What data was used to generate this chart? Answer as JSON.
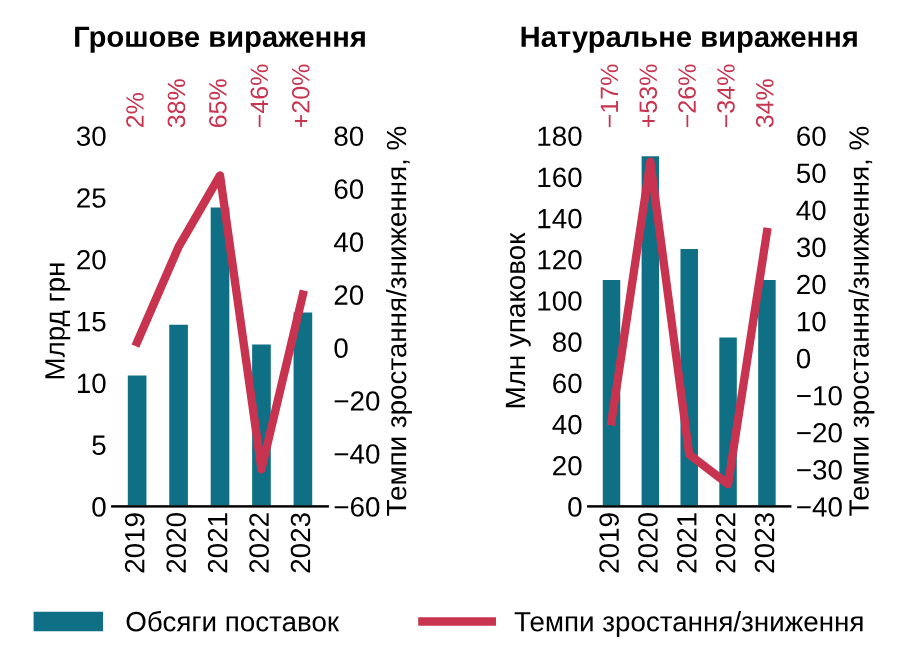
{
  "chart_data": [
    {
      "type": "bar",
      "title": "Грошове вираження",
      "ylabel": "Млрд грн",
      "y2label": "Темпи зростання/зниження, %",
      "categories": [
        "2019",
        "2020",
        "2021",
        "2022",
        "2023"
      ],
      "ylim": [
        0,
        30
      ],
      "yticks": [
        0,
        5,
        10,
        15,
        20,
        25,
        30
      ],
      "y2lim": [
        -60,
        80
      ],
      "y2ticks": [
        -60,
        -40,
        -20,
        0,
        20,
        40,
        60,
        80
      ],
      "legend": "bottom",
      "grid": false,
      "annotations": [
        "2%",
        "38%",
        "65%",
        "−46%",
        "+20%"
      ],
      "series": [
        {
          "name": "Обсяги поставок",
          "color": "#0e6f85",
          "values": [
            10.6,
            14.7,
            24.2,
            13.1,
            15.7
          ]
        },
        {
          "name": "Темпи зростання/зниження",
          "type": "line",
          "axis": "y2",
          "color": "#c8334f",
          "values": [
            2,
            38,
            65,
            -46,
            20
          ]
        }
      ]
    },
    {
      "type": "bar",
      "title": "Натуральне вираження",
      "ylabel": "Млн упаковок",
      "y2label": "Темпи зростання/зниження, %",
      "categories": [
        "2019",
        "2020",
        "2021",
        "2022",
        "2023"
      ],
      "ylim": [
        0,
        180
      ],
      "yticks": [
        0,
        20,
        40,
        60,
        80,
        100,
        120,
        140,
        160,
        180
      ],
      "y2lim": [
        -40,
        60
      ],
      "y2ticks": [
        -40,
        -30,
        -20,
        -10,
        0,
        10,
        20,
        30,
        40,
        50,
        60
      ],
      "grid": false,
      "annotations": [
        "−17%",
        "+53%",
        "−26%",
        "−34%",
        "34%"
      ],
      "series": [
        {
          "color": "#0e6f85",
          "values": [
            110,
            170,
            125,
            82,
            110
          ]
        },
        {
          "type": "line",
          "axis": "y2",
          "color": "#c8334f",
          "values": [
            -17,
            53,
            -26,
            -34,
            34
          ]
        }
      ]
    }
  ]
}
